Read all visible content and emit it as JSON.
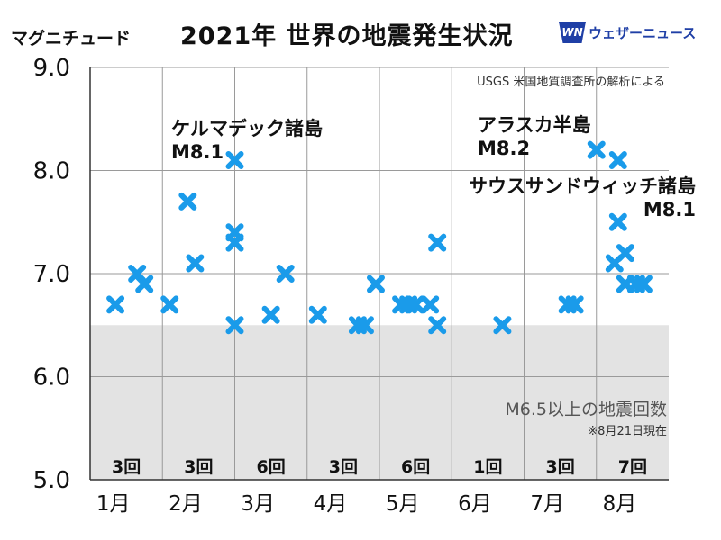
{
  "header": {
    "title": "2021年 世界の地震発生状況",
    "y_axis_label": "マグニチュード",
    "source": "USGS 米国地質調査所の解析による",
    "brand": {
      "logo_text": "WN",
      "name": "ウェザーニュース"
    }
  },
  "annotations": [
    {
      "name": "ケルマデック諸島",
      "mag": "M8.1"
    },
    {
      "name": "アラスカ半島",
      "mag": "M8.2"
    },
    {
      "name": "サウスサンドウィッチ諸島",
      "mag": "M8.1"
    }
  ],
  "shaded_region": {
    "label": "M6.5以上の地震回数",
    "note": "※8月21日現在",
    "ymax": 6.5,
    "color": "#e3e3e3"
  },
  "monthly_counts": [
    "3回",
    "3回",
    "6回",
    "3回",
    "6回",
    "1回",
    "3回",
    "7回"
  ],
  "chart_data": {
    "type": "scatter",
    "title": "2021年 世界の地震発生状況",
    "ylabel": "マグニチュード",
    "xlabel": "",
    "ylim": [
      5.0,
      9.0
    ],
    "yticks": [
      "5.0",
      "6.0",
      "7.0",
      "8.0",
      "9.0"
    ],
    "xlim": [
      1,
      9
    ],
    "xticks": [
      "1月",
      "2月",
      "3月",
      "4月",
      "5月",
      "6月",
      "7月",
      "8月"
    ],
    "grid": true,
    "marker": "x",
    "marker_color": "#1a9bea",
    "points": [
      {
        "x": 1.35,
        "y": 6.7
      },
      {
        "x": 1.65,
        "y": 7.0
      },
      {
        "x": 1.75,
        "y": 6.9
      },
      {
        "x": 2.1,
        "y": 6.7
      },
      {
        "x": 2.35,
        "y": 7.7
      },
      {
        "x": 2.45,
        "y": 7.1
      },
      {
        "x": 3.0,
        "y": 8.1
      },
      {
        "x": 3.0,
        "y": 7.4
      },
      {
        "x": 3.0,
        "y": 7.3
      },
      {
        "x": 3.0,
        "y": 6.5
      },
      {
        "x": 3.5,
        "y": 6.6
      },
      {
        "x": 3.7,
        "y": 7.0
      },
      {
        "x": 4.15,
        "y": 6.6
      },
      {
        "x": 4.7,
        "y": 6.5
      },
      {
        "x": 4.8,
        "y": 6.5
      },
      {
        "x": 4.95,
        "y": 6.9
      },
      {
        "x": 5.3,
        "y": 6.7
      },
      {
        "x": 5.4,
        "y": 6.7
      },
      {
        "x": 5.5,
        "y": 6.7
      },
      {
        "x": 5.7,
        "y": 6.7
      },
      {
        "x": 5.8,
        "y": 7.3
      },
      {
        "x": 5.8,
        "y": 6.5
      },
      {
        "x": 6.7,
        "y": 6.5
      },
      {
        "x": 7.6,
        "y": 6.7
      },
      {
        "x": 7.7,
        "y": 6.7
      },
      {
        "x": 8.0,
        "y": 8.2
      },
      {
        "x": 8.3,
        "y": 8.1
      },
      {
        "x": 8.3,
        "y": 7.5
      },
      {
        "x": 8.4,
        "y": 7.2
      },
      {
        "x": 8.25,
        "y": 7.1
      },
      {
        "x": 8.4,
        "y": 6.9
      },
      {
        "x": 8.55,
        "y": 6.9
      },
      {
        "x": 8.65,
        "y": 6.9
      }
    ]
  }
}
